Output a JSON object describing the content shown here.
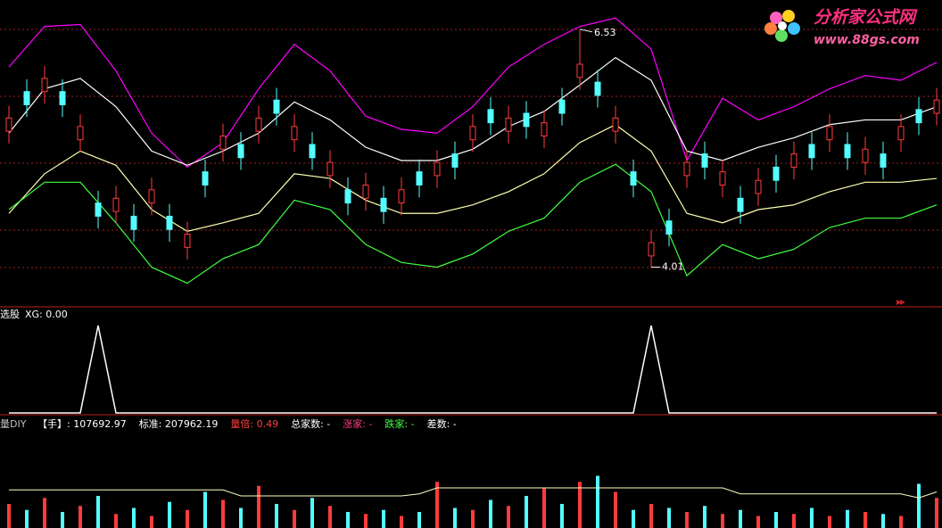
{
  "logo": {
    "title": "分析家公式网",
    "url": "www.88gs.com"
  },
  "chart_data": [
    {
      "type": "candlestick",
      "ylim": [
        3.6,
        6.84
      ],
      "up_color": "#ff3c3c",
      "down_color": "#54ffff",
      "candles": [
        [
          5.45,
          5.59,
          5.72,
          5.32
        ],
        [
          5.87,
          5.73,
          6.0,
          5.6
        ],
        [
          5.87,
          6.01,
          6.14,
          5.74
        ],
        [
          5.87,
          5.73,
          6.0,
          5.6
        ],
        [
          5.36,
          5.5,
          5.63,
          5.23
        ],
        [
          4.69,
          4.55,
          4.82,
          4.42
        ],
        [
          4.6,
          4.74,
          4.87,
          4.47
        ],
        [
          4.55,
          4.41,
          4.68,
          4.28
        ],
        [
          4.69,
          4.83,
          4.96,
          4.56
        ],
        [
          4.55,
          4.41,
          4.68,
          4.28
        ],
        [
          4.22,
          4.36,
          4.49,
          4.09
        ],
        [
          5.02,
          4.88,
          5.15,
          4.75
        ],
        [
          5.26,
          5.4,
          5.53,
          5.13
        ],
        [
          5.31,
          5.17,
          5.44,
          5.04
        ],
        [
          5.45,
          5.59,
          5.72,
          5.32
        ],
        [
          5.78,
          5.64,
          5.91,
          5.51
        ],
        [
          5.36,
          5.5,
          5.63,
          5.23
        ],
        [
          5.31,
          5.17,
          5.44,
          5.04
        ],
        [
          4.98,
          5.12,
          5.25,
          4.85
        ],
        [
          4.83,
          4.69,
          4.96,
          4.56
        ],
        [
          4.74,
          4.88,
          5.01,
          4.61
        ],
        [
          4.74,
          4.6,
          4.87,
          4.47
        ],
        [
          4.69,
          4.83,
          4.96,
          4.56
        ],
        [
          5.02,
          4.88,
          5.15,
          4.75
        ],
        [
          4.98,
          5.12,
          5.25,
          4.85
        ],
        [
          5.21,
          5.07,
          5.34,
          4.94
        ],
        [
          5.36,
          5.5,
          5.63,
          5.23
        ],
        [
          5.68,
          5.54,
          5.81,
          5.41
        ],
        [
          5.45,
          5.59,
          5.72,
          5.32
        ],
        [
          5.64,
          5.5,
          5.77,
          5.37
        ],
        [
          5.4,
          5.54,
          5.67,
          5.27
        ],
        [
          5.78,
          5.64,
          5.91,
          5.51
        ],
        [
          6.02,
          6.16,
          6.53,
          5.89
        ],
        [
          5.97,
          5.83,
          6.1,
          5.7
        ],
        [
          5.45,
          5.59,
          5.72,
          5.32
        ],
        [
          5.02,
          4.88,
          5.15,
          4.75
        ],
        [
          4.13,
          4.27,
          4.4,
          4.01
        ],
        [
          4.5,
          4.36,
          4.63,
          4.23
        ],
        [
          4.98,
          5.12,
          5.25,
          4.85
        ],
        [
          5.21,
          5.07,
          5.34,
          4.94
        ],
        [
          4.88,
          5.02,
          5.15,
          4.75
        ],
        [
          4.74,
          4.6,
          4.87,
          4.47
        ],
        [
          4.79,
          4.93,
          5.06,
          4.66
        ],
        [
          5.07,
          4.93,
          5.2,
          4.8
        ],
        [
          5.07,
          5.21,
          5.34,
          4.94
        ],
        [
          5.31,
          5.17,
          5.44,
          5.04
        ],
        [
          5.36,
          5.5,
          5.63,
          5.23
        ],
        [
          5.31,
          5.17,
          5.44,
          5.04
        ],
        [
          5.12,
          5.26,
          5.39,
          4.99
        ],
        [
          5.21,
          5.07,
          5.34,
          4.94
        ],
        [
          5.36,
          5.5,
          5.63,
          5.23
        ],
        [
          5.68,
          5.54,
          5.81,
          5.41
        ],
        [
          5.64,
          5.78,
          5.91,
          5.51
        ]
      ],
      "series": [
        {
          "color": "#ff00ff",
          "values": [
            6.13,
            6.56,
            6.58,
            6.09,
            5.43,
            5.07,
            5.33,
            5.9,
            6.37,
            6.09,
            5.61,
            5.47,
            5.43,
            5.71,
            6.13,
            6.37,
            6.56,
            6.65,
            6.32,
            5.14,
            5.8,
            5.57,
            5.71,
            5.9,
            6.04,
            5.99,
            6.18
          ]
        },
        {
          "color": "#ffffff",
          "values": [
            5.43,
            5.9,
            6.01,
            5.71,
            5.24,
            5.09,
            5.24,
            5.43,
            5.76,
            5.57,
            5.28,
            5.14,
            5.14,
            5.26,
            5.5,
            5.66,
            5.94,
            6.23,
            5.99,
            5.24,
            5.14,
            5.28,
            5.38,
            5.52,
            5.57,
            5.57,
            5.71
          ]
        },
        {
          "color": "#ffffb0",
          "values": [
            4.58,
            5.0,
            5.24,
            5.09,
            4.62,
            4.39,
            4.48,
            4.58,
            5.0,
            4.95,
            4.72,
            4.58,
            4.58,
            4.67,
            4.81,
            5.0,
            5.33,
            5.52,
            5.24,
            4.58,
            4.48,
            4.62,
            4.67,
            4.81,
            4.91,
            4.91,
            4.95
          ]
        },
        {
          "color": "#40ff40",
          "values": [
            4.62,
            4.91,
            4.91,
            4.48,
            4.01,
            3.84,
            4.1,
            4.25,
            4.72,
            4.62,
            4.25,
            4.06,
            4.01,
            4.15,
            4.39,
            4.53,
            4.91,
            5.1,
            4.81,
            3.92,
            4.25,
            4.1,
            4.2,
            4.43,
            4.53,
            4.53,
            4.67
          ]
        }
      ]
    },
    {
      "type": "line",
      "title": "选股",
      "label": "XG: 0.00",
      "color": "#ffffff",
      "ylim": [
        0,
        1
      ],
      "values": [
        0,
        0,
        0,
        0,
        0,
        1,
        0,
        0,
        0,
        0,
        0,
        0,
        0,
        0,
        0,
        0,
        0,
        0,
        0,
        0,
        0,
        0,
        0,
        0,
        0,
        0,
        0,
        0,
        0,
        0,
        0,
        0,
        0,
        0,
        0,
        0,
        1,
        0,
        0,
        0,
        0,
        0,
        0,
        0,
        0,
        0,
        0,
        0,
        0,
        0,
        0,
        0,
        0
      ]
    },
    {
      "type": "bar",
      "title": "量DIY",
      "ylim": [
        0,
        520000
      ],
      "up_color": "#ff3c3c",
      "down_color": "#54ffff",
      "stats": [
        {
          "text": "【手】: 107692.97",
          "color": "#ffffff"
        },
        {
          "text": "标准: 207962.19",
          "color": "#ffffff"
        },
        {
          "text": "量倍: 0.49",
          "color": "#ff3c3c"
        },
        {
          "text": "总家数: -",
          "color": "#ffffff"
        },
        {
          "text": "涨家: -",
          "color": "#ff3c80"
        },
        {
          "text": "跌家: -",
          "color": "#40ff40"
        },
        {
          "text": "差数: -",
          "color": "#ffffff"
        }
      ],
      "values": [
        120000,
        90000,
        150000,
        80000,
        110000,
        160000,
        70000,
        100000,
        60000,
        130000,
        90000,
        180000,
        140000,
        100000,
        210000,
        120000,
        90000,
        150000,
        110000,
        80000,
        70000,
        90000,
        60000,
        80000,
        230000,
        100000,
        90000,
        140000,
        110000,
        160000,
        200000,
        120000,
        230000,
        260000,
        180000,
        90000,
        120000,
        100000,
        80000,
        110000,
        70000,
        90000,
        60000,
        80000,
        70000,
        100000,
        60000,
        90000,
        80000,
        70000,
        60000,
        220000,
        150000
      ],
      "line": {
        "color": "#ffffc0",
        "values": [
          190000,
          190000,
          190000,
          190000,
          190000,
          190000,
          190000,
          190000,
          190000,
          190000,
          190000,
          190000,
          190000,
          160000,
          160000,
          160000,
          160000,
          160000,
          160000,
          160000,
          160000,
          160000,
          160000,
          170000,
          200000,
          200000,
          200000,
          200000,
          200000,
          200000,
          200000,
          200000,
          200000,
          200000,
          200000,
          200000,
          200000,
          200000,
          200000,
          200000,
          200000,
          170000,
          170000,
          170000,
          170000,
          170000,
          170000,
          170000,
          170000,
          170000,
          170000,
          150000,
          180000
        ]
      }
    }
  ]
}
